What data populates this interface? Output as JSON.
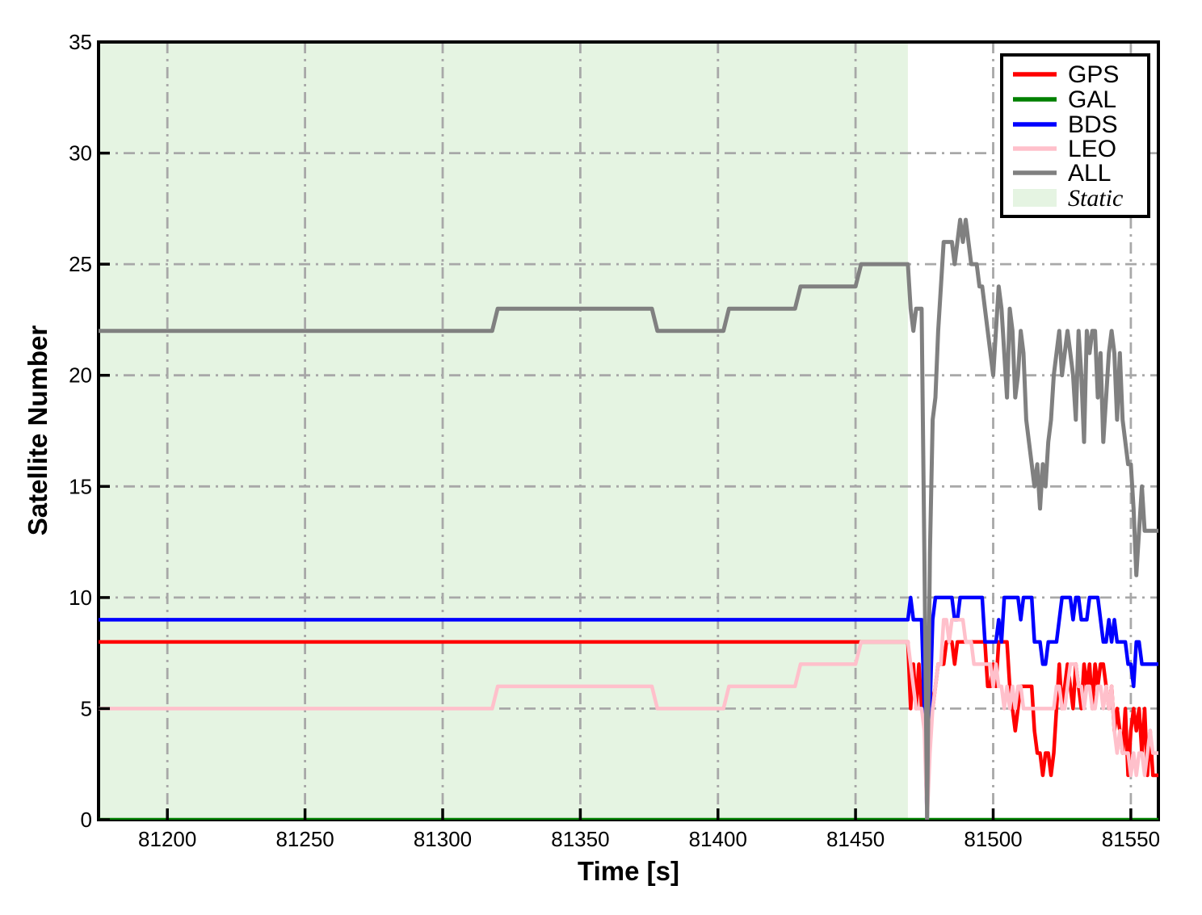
{
  "chart_data": {
    "type": "line",
    "title": "",
    "xlabel": "Time [s]",
    "ylabel": "Satellite Number",
    "xlim": [
      81175,
      81560
    ],
    "ylim": [
      0,
      35
    ],
    "xticks": [
      81200,
      81250,
      81300,
      81350,
      81400,
      81450,
      81500,
      81550
    ],
    "yticks": [
      0,
      5,
      10,
      15,
      20,
      25,
      30,
      35
    ],
    "grid": {
      "visible": true,
      "style": "dash-dot",
      "color": "#a8a8a8"
    },
    "legend_position": "upper right",
    "static_region": {
      "label": "Static",
      "x_start": 81175,
      "x_end": 81469,
      "color": "#e5f4e2"
    },
    "series": [
      {
        "name": "GPS",
        "color": "#ff0000",
        "width": 4.5,
        "pre": [
          [
            81175,
            8
          ]
        ],
        "per_second": {
          "start": 81469,
          "dt": 1,
          "values": [
            8,
            5,
            7,
            5,
            7,
            5,
            6,
            5,
            6,
            5,
            6,
            7,
            7,
            7,
            8,
            8,
            8,
            7,
            8,
            8,
            8,
            8,
            8,
            8,
            8,
            8,
            8,
            8,
            8,
            6,
            6,
            7,
            6,
            8,
            8,
            8,
            8,
            6,
            5,
            4,
            5,
            6,
            6,
            6,
            6,
            6,
            4,
            3,
            3,
            2,
            3,
            3,
            2,
            3,
            5,
            7,
            5,
            6,
            7,
            6,
            5,
            7,
            6,
            5,
            7,
            6,
            7,
            5,
            7,
            6,
            7,
            7,
            6,
            5,
            6,
            4,
            5,
            4,
            3,
            5,
            2,
            4,
            5,
            4,
            5,
            3,
            5,
            2,
            4,
            2,
            2
          ]
        }
      },
      {
        "name": "GAL",
        "color": "#008000",
        "width": 4.5,
        "pre": [
          [
            81175,
            0
          ],
          [
            81560,
            0
          ]
        ],
        "per_second": null
      },
      {
        "name": "BDS",
        "color": "#0000ff",
        "width": 4.5,
        "pre": [
          [
            81175,
            9
          ]
        ],
        "per_second": {
          "start": 81469,
          "dt": 1,
          "values": [
            9,
            10,
            9,
            9,
            9,
            9,
            5,
            0,
            5,
            9,
            10,
            10,
            10,
            10,
            10,
            10,
            10,
            9,
            9,
            10,
            10,
            10,
            10,
            10,
            10,
            10,
            10,
            10,
            8,
            8,
            8,
            8,
            8,
            9,
            8,
            10,
            10,
            10,
            10,
            10,
            10,
            9,
            10,
            10,
            10,
            10,
            8,
            8,
            8,
            7,
            7,
            8,
            8,
            8,
            8,
            9,
            10,
            10,
            10,
            10,
            9,
            10,
            10,
            9,
            9,
            9,
            10,
            10,
            10,
            10,
            9,
            8,
            8,
            9,
            8,
            9,
            8,
            8,
            8,
            8,
            7,
            7,
            6,
            8,
            8,
            7,
            7,
            7,
            7,
            7,
            7
          ]
        }
      },
      {
        "name": "LEO",
        "color": "#ffc0cb",
        "width": 4.5,
        "pre": [
          [
            81175,
            5
          ],
          [
            81318,
            5
          ],
          [
            81320,
            6
          ],
          [
            81376,
            6
          ],
          [
            81378,
            5
          ],
          [
            81402,
            5
          ],
          [
            81404,
            6
          ],
          [
            81428,
            6
          ],
          [
            81430,
            7
          ],
          [
            81450,
            7
          ],
          [
            81452,
            8
          ]
        ],
        "per_second": {
          "start": 81469,
          "dt": 1,
          "values": [
            8,
            7,
            6,
            5,
            5,
            5,
            4,
            0,
            3,
            5,
            6,
            7,
            7,
            9,
            9,
            8,
            9,
            9,
            9,
            9,
            9,
            8,
            8,
            8,
            7,
            7,
            7,
            7,
            7,
            7,
            7,
            6,
            7,
            6,
            6,
            5,
            6,
            5,
            6,
            5,
            6,
            6,
            5,
            5,
            5,
            5,
            5,
            5,
            5,
            5,
            5,
            5,
            5,
            5,
            6,
            6,
            5,
            5,
            6,
            7,
            7,
            7,
            6,
            6,
            5,
            6,
            6,
            5,
            5,
            6,
            6,
            5,
            6,
            5,
            6,
            4,
            3,
            4,
            3,
            3,
            3,
            2,
            3,
            2,
            3,
            3,
            2,
            3,
            4,
            3,
            3
          ]
        }
      },
      {
        "name": "ALL",
        "color": "#808080",
        "width": 5,
        "pre": [
          [
            81175,
            22
          ],
          [
            81318,
            22
          ],
          [
            81320,
            23
          ],
          [
            81376,
            23
          ],
          [
            81378,
            22
          ],
          [
            81402,
            22
          ],
          [
            81404,
            23
          ],
          [
            81428,
            23
          ],
          [
            81430,
            24
          ],
          [
            81450,
            24
          ],
          [
            81452,
            25
          ]
        ],
        "per_second": {
          "start": 81469,
          "dt": 1,
          "values": [
            25,
            23,
            22,
            23,
            23,
            23,
            12,
            0,
            12,
            18,
            19,
            22,
            24,
            26,
            26,
            26,
            26,
            25,
            26,
            27,
            26,
            27,
            26,
            25,
            25,
            25,
            24,
            24,
            23,
            22,
            21,
            20,
            22,
            24,
            23,
            21,
            19,
            23,
            22,
            19,
            20,
            22,
            21,
            18,
            17,
            16,
            15,
            16,
            14,
            16,
            15,
            17,
            18,
            20,
            21,
            22,
            20,
            21,
            22,
            21,
            20,
            18,
            22,
            20,
            17,
            22,
            21,
            22,
            22,
            19,
            21,
            17,
            19,
            21,
            22,
            21,
            18,
            21,
            18,
            17,
            16,
            16,
            14,
            11,
            13,
            15,
            13,
            13,
            13,
            13,
            13
          ]
        }
      }
    ]
  }
}
